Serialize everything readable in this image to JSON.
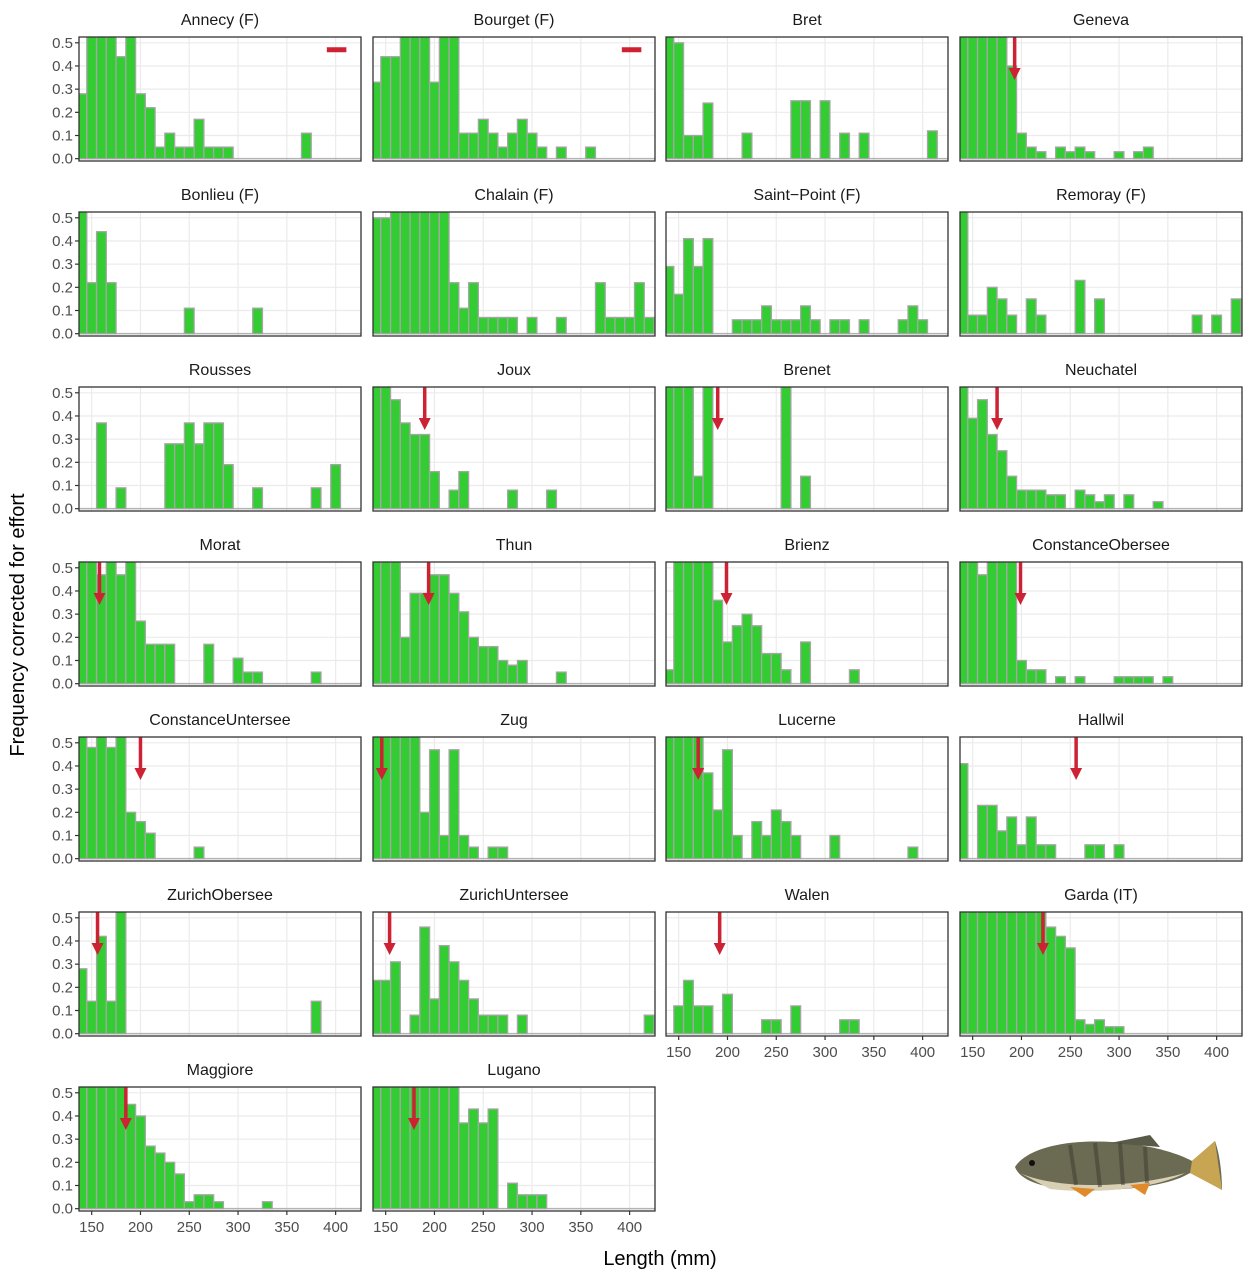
{
  "chart_data": {
    "type": "histogram",
    "xlabel": "Length (mm)",
    "ylabel": "Frequency corrected for effort",
    "xlim": [
      137,
      426
    ],
    "ylim": [
      -0.01,
      0.525
    ],
    "xticks": [
      150,
      200,
      250,
      300,
      350,
      400
    ],
    "yticks": [
      {
        "value": 0,
        "label": "0.0"
      },
      0.1,
      0.2,
      0.3,
      0.4,
      0.5
    ],
    "bins": [
      135,
      145,
      155,
      165,
      175,
      185,
      195,
      205,
      215,
      225,
      235,
      245,
      255,
      265,
      275,
      285,
      295,
      305,
      315,
      325,
      335,
      345,
      355,
      365,
      375,
      385,
      395,
      405,
      415,
      425
    ],
    "color": "#33cc33",
    "marker_color": "#cc2233",
    "grid": true,
    "panels": [
      {
        "title": "Annecy (F)",
        "counts": [
          0.28,
          0.55,
          0.55,
          0.55,
          0.44,
          0.55,
          0.28,
          0.22,
          0.05,
          0.11,
          0.05,
          0.05,
          0.17,
          0.05,
          0.05,
          0.05,
          0,
          0,
          0,
          0,
          0,
          0,
          0,
          0.11,
          0,
          0,
          0,
          0,
          0
        ],
        "segment": {
          "x": [
            391,
            411
          ],
          "y": 0.47
        }
      },
      {
        "title": "Bourget (F)",
        "counts": [
          0.33,
          0.44,
          0.44,
          0.55,
          0.55,
          0.55,
          0.33,
          0.55,
          0.55,
          0.11,
          0.11,
          0.17,
          0.11,
          0.05,
          0.11,
          0.17,
          0.11,
          0.05,
          0,
          0.05,
          0,
          0,
          0.05,
          0,
          0,
          0,
          0,
          0,
          0
        ],
        "segment": {
          "x": [
            392,
            412
          ],
          "y": 0.47
        }
      },
      {
        "title": "Bret",
        "counts": [
          0.55,
          0.5,
          0.1,
          0.1,
          0.24,
          0,
          0,
          0,
          0.11,
          0,
          0,
          0,
          0,
          0.25,
          0.25,
          0,
          0.25,
          0,
          0.11,
          0,
          0.11,
          0,
          0,
          0,
          0,
          0,
          0,
          0.12,
          0
        ]
      },
      {
        "title": "Geneva",
        "counts": [
          0.55,
          0.55,
          0.55,
          0.55,
          0.55,
          0.4,
          0.11,
          0.05,
          0.03,
          0,
          0.05,
          0.03,
          0.05,
          0.03,
          0,
          0,
          0.03,
          0,
          0.03,
          0.05,
          0,
          0,
          0,
          0,
          0,
          0,
          0,
          0,
          0
        ],
        "arrow": 193
      },
      {
        "title": "Bonlieu (F)",
        "counts": [
          0.55,
          0.22,
          0.44,
          0.22,
          0,
          0,
          0,
          0,
          0,
          0,
          0,
          0.11,
          0,
          0,
          0,
          0,
          0,
          0,
          0.11,
          0,
          0,
          0,
          0,
          0,
          0,
          0,
          0,
          0,
          0
        ]
      },
      {
        "title": "Chalain (F)",
        "counts": [
          0.5,
          0.5,
          0.55,
          0.55,
          0.55,
          0.55,
          0.55,
          0.55,
          0.22,
          0.11,
          0.22,
          0.07,
          0.07,
          0.07,
          0.07,
          0,
          0.07,
          0,
          0,
          0.07,
          0,
          0,
          0,
          0.22,
          0.07,
          0.07,
          0.07,
          0.22,
          0.07
        ]
      },
      {
        "title": "Saint−Point (F)",
        "counts": [
          0.29,
          0.17,
          0.41,
          0.29,
          0.41,
          0,
          0,
          0.06,
          0.06,
          0.06,
          0.12,
          0.06,
          0.06,
          0.06,
          0.12,
          0.06,
          0,
          0.06,
          0.06,
          0,
          0.06,
          0,
          0,
          0,
          0.06,
          0.12,
          0.06,
          0,
          0
        ]
      },
      {
        "title": "Remoray (F)",
        "counts": [
          0.55,
          0.08,
          0.08,
          0.2,
          0.15,
          0.08,
          0,
          0.15,
          0.08,
          0,
          0,
          0,
          0.23,
          0,
          0.15,
          0,
          0,
          0,
          0,
          0,
          0,
          0,
          0,
          0,
          0.08,
          0,
          0.08,
          0,
          0.15
        ]
      },
      {
        "title": "Rousses",
        "counts": [
          0,
          0,
          0.37,
          0,
          0.09,
          0,
          0,
          0,
          0,
          0.28,
          0.28,
          0.37,
          0.28,
          0.37,
          0.37,
          0.19,
          0,
          0,
          0.09,
          0,
          0,
          0,
          0,
          0,
          0.09,
          0,
          0.19,
          0,
          0
        ]
      },
      {
        "title": "Joux",
        "counts": [
          0.55,
          0.55,
          0.47,
          0.37,
          0.32,
          0.32,
          0.16,
          0,
          0.08,
          0.16,
          0,
          0,
          0,
          0,
          0.08,
          0,
          0,
          0,
          0.08,
          0,
          0,
          0,
          0,
          0,
          0,
          0,
          0,
          0,
          0
        ],
        "arrow": 190
      },
      {
        "title": "Brenet",
        "counts": [
          0.55,
          0.55,
          0.55,
          0.14,
          0.55,
          0,
          0,
          0,
          0,
          0,
          0,
          0,
          0.55,
          0,
          0.14,
          0,
          0,
          0,
          0,
          0,
          0,
          0,
          0,
          0,
          0,
          0,
          0,
          0,
          0
        ],
        "arrow": 190
      },
      {
        "title": "Neuchatel",
        "counts": [
          0.55,
          0.39,
          0.47,
          0.32,
          0.25,
          0.14,
          0.08,
          0.08,
          0.08,
          0.06,
          0.06,
          0,
          0.08,
          0.06,
          0.03,
          0.06,
          0,
          0.06,
          0,
          0,
          0.03,
          0,
          0,
          0,
          0,
          0,
          0,
          0,
          0
        ],
        "arrow": 175
      },
      {
        "title": "Morat",
        "counts": [
          0.55,
          0.55,
          0.47,
          0.55,
          0.47,
          0.55,
          0.27,
          0.17,
          0.17,
          0.17,
          0,
          0,
          0,
          0.17,
          0,
          0,
          0.11,
          0.05,
          0.05,
          0,
          0,
          0,
          0,
          0,
          0.05,
          0,
          0,
          0,
          0
        ],
        "arrow": 158
      },
      {
        "title": "Thun",
        "counts": [
          0.55,
          0.55,
          0.55,
          0.2,
          0.39,
          0.39,
          0.47,
          0.47,
          0.39,
          0.31,
          0.2,
          0.16,
          0.16,
          0.1,
          0.08,
          0.1,
          0,
          0,
          0,
          0.05,
          0,
          0,
          0,
          0,
          0,
          0,
          0,
          0,
          0
        ],
        "arrow": 194
      },
      {
        "title": "Brienz",
        "counts": [
          0.06,
          0.55,
          0.55,
          0.55,
          0.55,
          0.36,
          0.18,
          0.25,
          0.3,
          0.25,
          0.13,
          0.13,
          0.06,
          0,
          0.18,
          0,
          0,
          0,
          0,
          0.06,
          0,
          0,
          0,
          0,
          0,
          0,
          0,
          0,
          0
        ],
        "arrow": 199
      },
      {
        "title": "ConstanceObersee",
        "counts": [
          0.55,
          0.55,
          0.47,
          0.55,
          0.55,
          0.55,
          0.1,
          0.06,
          0.06,
          0,
          0.03,
          0,
          0.03,
          0,
          0,
          0,
          0.03,
          0.03,
          0.03,
          0.03,
          0,
          0.03,
          0,
          0,
          0,
          0,
          0,
          0,
          0
        ],
        "arrow": 199
      },
      {
        "title": "ConstanceUntersee",
        "counts": [
          0.55,
          0.48,
          0.55,
          0.48,
          0.55,
          0.2,
          0.16,
          0.11,
          0,
          0,
          0,
          0,
          0.05,
          0,
          0,
          0,
          0,
          0,
          0,
          0,
          0,
          0,
          0,
          0,
          0,
          0,
          0,
          0,
          0
        ],
        "arrow": 200
      },
      {
        "title": "Zug",
        "counts": [
          0.55,
          0.55,
          0.55,
          0.55,
          0.55,
          0.2,
          0.47,
          0.1,
          0.47,
          0.1,
          0.05,
          0,
          0.05,
          0.05,
          0,
          0,
          0,
          0,
          0,
          0,
          0,
          0,
          0,
          0,
          0,
          0,
          0,
          0,
          0
        ],
        "arrow": 146
      },
      {
        "title": "Lucerne",
        "counts": [
          0.55,
          0.55,
          0.55,
          0.55,
          0.37,
          0.21,
          0.47,
          0.1,
          0,
          0.16,
          0.1,
          0.21,
          0.16,
          0.1,
          0,
          0,
          0,
          0.1,
          0,
          0,
          0,
          0,
          0,
          0,
          0,
          0.05,
          0,
          0,
          0
        ],
        "arrow": 170
      },
      {
        "title": "Hallwil",
        "counts": [
          0.41,
          0,
          0.23,
          0.23,
          0.12,
          0.18,
          0.06,
          0.18,
          0.06,
          0.06,
          0,
          0,
          0,
          0.06,
          0.06,
          0,
          0.06,
          0,
          0,
          0,
          0,
          0,
          0,
          0,
          0,
          0,
          0,
          0,
          0
        ],
        "arrow": 256
      },
      {
        "title": "ZurichObersee",
        "counts": [
          0.28,
          0.14,
          0.42,
          0.14,
          0.55,
          0,
          0,
          0,
          0,
          0,
          0,
          0,
          0,
          0,
          0,
          0,
          0,
          0,
          0,
          0,
          0,
          0,
          0,
          0,
          0.14,
          0,
          0,
          0,
          0
        ],
        "arrow": 156
      },
      {
        "title": "ZurichUntersee",
        "counts": [
          0.23,
          0.23,
          0.31,
          0,
          0.08,
          0.46,
          0.15,
          0.38,
          0.31,
          0.23,
          0.15,
          0.08,
          0.08,
          0.08,
          0,
          0.08,
          0,
          0,
          0,
          0,
          0,
          0,
          0,
          0,
          0,
          0,
          0,
          0,
          0.08
        ],
        "arrow": 154
      },
      {
        "title": "Walen",
        "counts": [
          0,
          0.12,
          0.23,
          0.12,
          0.12,
          0,
          0.17,
          0,
          0,
          0,
          0.06,
          0.06,
          0,
          0.12,
          0,
          0,
          0,
          0,
          0.06,
          0.06,
          0,
          0,
          0,
          0,
          0,
          0,
          0,
          0,
          0
        ],
        "arrow": 192
      },
      {
        "title": "Garda (IT)",
        "counts": [
          0.55,
          0.55,
          0.55,
          0.55,
          0.55,
          0.55,
          0.55,
          0.55,
          0.55,
          0.46,
          0.42,
          0.37,
          0.06,
          0.04,
          0.06,
          0.03,
          0.03,
          0,
          0,
          0,
          0,
          0,
          0,
          0,
          0,
          0,
          0,
          0,
          0
        ],
        "arrow": 222
      },
      {
        "title": "Maggiore",
        "counts": [
          0.55,
          0.55,
          0.55,
          0.55,
          0.55,
          0.45,
          0.4,
          0.27,
          0.24,
          0.2,
          0.15,
          0.03,
          0.06,
          0.06,
          0.03,
          0,
          0,
          0,
          0,
          0.03,
          0,
          0,
          0,
          0,
          0,
          0,
          0,
          0,
          0
        ],
        "arrow": 185
      },
      {
        "title": "Lugano",
        "counts": [
          0.55,
          0.55,
          0.55,
          0.55,
          0.55,
          0.55,
          0.55,
          0.55,
          0.55,
          0.37,
          0.43,
          0.37,
          0.43,
          0,
          0.11,
          0.06,
          0.06,
          0.06,
          0,
          0,
          0,
          0,
          0,
          0,
          0,
          0,
          0,
          0,
          0
        ],
        "arrow": 179
      }
    ]
  }
}
